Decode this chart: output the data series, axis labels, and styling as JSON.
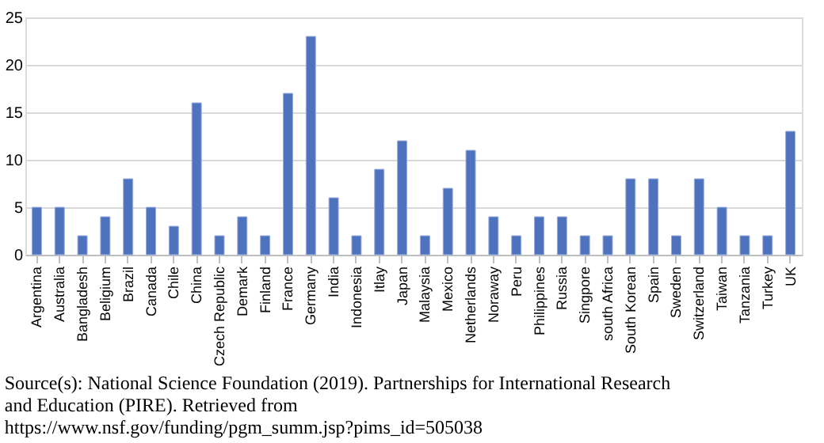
{
  "chart_data": {
    "type": "bar",
    "categories": [
      "Argentina",
      "Australia",
      "Bangladesh",
      "Beligium",
      "Brazil",
      "Canada",
      "Chile",
      "China",
      "Czech Republic",
      "Demark",
      "Finland",
      "France",
      "Germany",
      "India",
      "Indonesia",
      "Itlay",
      "Japan",
      "Malaysia",
      "Mexico",
      "Netherlands",
      "Noraway",
      "Peru",
      "Philippines",
      "Russia",
      "Singpore",
      "south Africa",
      "South Korean",
      "Spain",
      "Sweden",
      "Switzerland",
      "Taiwan",
      "Tanzania",
      "Turkey",
      "UK"
    ],
    "values": [
      5,
      5,
      2,
      4,
      8,
      5,
      3,
      16,
      2,
      4,
      2,
      17,
      23,
      6,
      2,
      9,
      12,
      2,
      7,
      11,
      4,
      2,
      4,
      4,
      2,
      2,
      8,
      8,
      2,
      8,
      5,
      2,
      2,
      13
    ],
    "color": "#4f72be",
    "ylim": [
      0,
      25
    ],
    "yticks": [
      0,
      5,
      10,
      15,
      20,
      25
    ],
    "grid": "y",
    "annotations": [
      "Source(s): National Science Foundation (2019). Partnerships for International Research and Education (PIRE). Retrieved from https://www.nsf.gov/funding/pgm_summ.jsp?pims_id=505038"
    ]
  }
}
